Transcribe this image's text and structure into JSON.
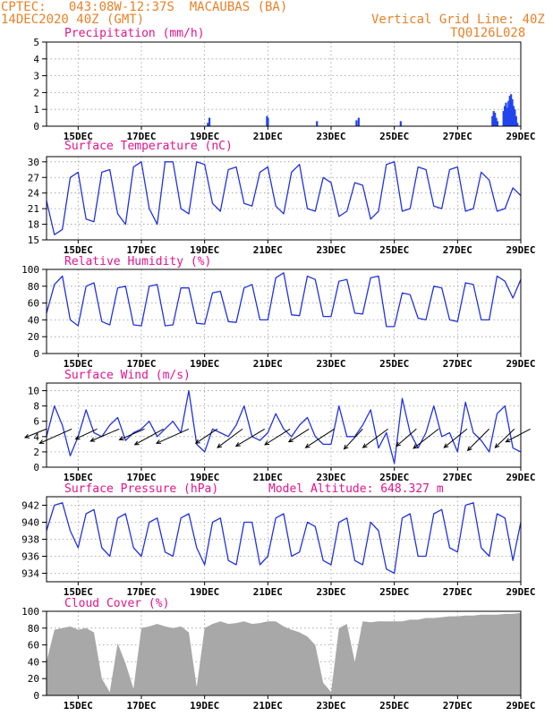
{
  "header": {
    "line1": "CPTEC:   043:08W-12:37S  MACAUBAS (BA)",
    "line2": "14DEC2020 40Z (GMT)",
    "grid_note": "Vertical Grid Line: 40Z",
    "model_code": "TQ0126L028"
  },
  "colors": {
    "header": "#e8822a",
    "title": "#e0158c",
    "line": "#2233dd",
    "precip": "#2244ee",
    "cloud": "#a8a8a8",
    "wind": "#000000"
  },
  "chart_data": [
    {
      "id": "precip",
      "type": "bar",
      "title": "Precipitation (mm/h)",
      "ylim": [
        0,
        5
      ],
      "yticks": [
        0,
        1,
        2,
        3,
        4,
        5
      ],
      "xlim": [
        14.0,
        29.0
      ],
      "xticks": [
        15,
        17,
        19,
        21,
        23,
        25,
        27,
        29
      ],
      "xticklabels": [
        "15DEC",
        "17DEC",
        "19DEC",
        "21DEC",
        "23DEC",
        "25DEC",
        "27DEC",
        "29DEC"
      ],
      "bars": [
        [
          19.1,
          0.2
        ],
        [
          19.15,
          0.5
        ],
        [
          20.97,
          0.6
        ],
        [
          21.0,
          0.5
        ],
        [
          22.55,
          0.3
        ],
        [
          23.8,
          0.35
        ],
        [
          23.87,
          0.5
        ],
        [
          25.2,
          0.3
        ],
        [
          28.1,
          0.6
        ],
        [
          28.14,
          0.9
        ],
        [
          28.18,
          0.8
        ],
        [
          28.22,
          0.5
        ],
        [
          28.26,
          0.3
        ],
        [
          28.45,
          0.9
        ],
        [
          28.49,
          1.2
        ],
        [
          28.53,
          1.4
        ],
        [
          28.57,
          1.1
        ],
        [
          28.61,
          1.5
        ],
        [
          28.65,
          1.8
        ],
        [
          28.69,
          1.9
        ],
        [
          28.73,
          1.6
        ],
        [
          28.77,
          1.2
        ],
        [
          28.81,
          1.0
        ],
        [
          28.85,
          0.6
        ],
        [
          28.89,
          0.2
        ]
      ]
    },
    {
      "id": "temp",
      "type": "line",
      "title": "Surface Temperature (nC)",
      "ylim": [
        15,
        31
      ],
      "yticks": [
        15,
        18,
        21,
        24,
        27,
        30
      ],
      "xlim": [
        14.0,
        29.0
      ],
      "xticks": [
        15,
        17,
        19,
        21,
        23,
        25,
        27,
        29
      ],
      "xticklabels": [
        "15DEC",
        "17DEC",
        "19DEC",
        "21DEC",
        "23DEC",
        "25DEC",
        "27DEC",
        "29DEC"
      ],
      "x": [
        14.0,
        14.25,
        14.5,
        14.75,
        15.0,
        15.25,
        15.5,
        15.75,
        16.0,
        16.25,
        16.5,
        16.75,
        17.0,
        17.25,
        17.5,
        17.75,
        18.0,
        18.25,
        18.5,
        18.75,
        19.0,
        19.25,
        19.5,
        19.75,
        20.0,
        20.25,
        20.5,
        20.75,
        21.0,
        21.25,
        21.5,
        21.75,
        22.0,
        22.25,
        22.5,
        22.75,
        23.0,
        23.25,
        23.5,
        23.75,
        24.0,
        24.25,
        24.5,
        24.75,
        25.0,
        25.25,
        25.5,
        25.75,
        26.0,
        26.25,
        26.5,
        26.75,
        27.0,
        27.25,
        27.5,
        27.75,
        28.0,
        28.25,
        28.5,
        28.75,
        29.0
      ],
      "values": [
        22.5,
        16.0,
        17.0,
        27.0,
        28.0,
        19.0,
        18.5,
        28.0,
        28.5,
        20.0,
        18.0,
        29.0,
        30.0,
        21.0,
        18.0,
        30.0,
        30.0,
        21.0,
        20.0,
        30.0,
        29.5,
        22.0,
        20.5,
        28.5,
        29.0,
        22.0,
        21.5,
        28.0,
        29.0,
        21.5,
        20.0,
        28.0,
        29.5,
        21.0,
        20.5,
        27.0,
        26.0,
        19.5,
        20.5,
        26.0,
        25.5,
        19.0,
        20.5,
        29.5,
        30.0,
        20.5,
        21.0,
        29.0,
        28.5,
        21.5,
        21.0,
        28.5,
        29.0,
        20.5,
        21.0,
        28.0,
        26.5,
        20.5,
        21.0,
        25.0,
        23.5
      ]
    },
    {
      "id": "rh",
      "type": "line",
      "title": "Relative Humidity (%)",
      "ylim": [
        0,
        100
      ],
      "yticks": [
        0,
        20,
        40,
        60,
        80,
        100
      ],
      "xlim": [
        14.0,
        29.0
      ],
      "xticks": [
        15,
        17,
        19,
        21,
        23,
        25,
        27,
        29
      ],
      "xticklabels": [
        "15DEC",
        "17DEC",
        "19DEC",
        "21DEC",
        "23DEC",
        "25DEC",
        "27DEC",
        "29DEC"
      ],
      "x": [
        14.0,
        14.25,
        14.5,
        14.75,
        15.0,
        15.25,
        15.5,
        15.75,
        16.0,
        16.25,
        16.5,
        16.75,
        17.0,
        17.25,
        17.5,
        17.75,
        18.0,
        18.25,
        18.5,
        18.75,
        19.0,
        19.25,
        19.5,
        19.75,
        20.0,
        20.25,
        20.5,
        20.75,
        21.0,
        21.25,
        21.5,
        21.75,
        22.0,
        22.25,
        22.5,
        22.75,
        23.0,
        23.25,
        23.5,
        23.75,
        24.0,
        24.25,
        24.5,
        24.75,
        25.0,
        25.25,
        25.5,
        25.75,
        26.0,
        26.25,
        26.5,
        26.75,
        27.0,
        27.25,
        27.5,
        27.75,
        28.0,
        28.25,
        28.5,
        28.75,
        29.0
      ],
      "values": [
        48.0,
        82.0,
        92.0,
        40.0,
        33.0,
        80.0,
        84.0,
        38.0,
        34.0,
        78.0,
        80.0,
        34.0,
        33.0,
        80.0,
        82.0,
        33.0,
        34.0,
        78.0,
        78.0,
        36.0,
        35.0,
        72.0,
        74.0,
        38.0,
        37.0,
        78.0,
        82.0,
        40.0,
        40.0,
        90.0,
        96.0,
        46.0,
        45.0,
        92.0,
        88.0,
        44.0,
        44.0,
        86.0,
        88.0,
        48.0,
        47.0,
        90.0,
        92.0,
        32.0,
        32.0,
        72.0,
        70.0,
        42.0,
        40.0,
        80.0,
        78.0,
        40.0,
        38.0,
        84.0,
        82.0,
        40.0,
        40.0,
        92.0,
        86.0,
        66.0,
        88.0
      ]
    },
    {
      "id": "wind",
      "type": "line",
      "title": "Surface Wind (m/s)",
      "ylim": [
        0,
        11
      ],
      "yticks": [
        0,
        2,
        4,
        6,
        8,
        10
      ],
      "xlim": [
        14.0,
        29.0
      ],
      "xticks": [
        15,
        17,
        19,
        21,
        23,
        25,
        27,
        29
      ],
      "xticklabels": [
        "15DEC",
        "17DEC",
        "19DEC",
        "21DEC",
        "23DEC",
        "25DEC",
        "27DEC",
        "29DEC"
      ],
      "x": [
        14.0,
        14.25,
        14.5,
        14.75,
        15.0,
        15.25,
        15.5,
        15.75,
        16.0,
        16.25,
        16.5,
        16.75,
        17.0,
        17.25,
        17.5,
        17.75,
        18.0,
        18.25,
        18.5,
        18.75,
        19.0,
        19.25,
        19.5,
        19.75,
        20.0,
        20.25,
        20.5,
        20.75,
        21.0,
        21.25,
        21.5,
        21.75,
        22.0,
        22.25,
        22.5,
        22.75,
        23.0,
        23.25,
        23.5,
        23.75,
        24.0,
        24.25,
        24.5,
        24.75,
        25.0,
        25.25,
        25.5,
        25.75,
        26.0,
        26.25,
        26.5,
        26.75,
        27.0,
        27.25,
        27.5,
        27.75,
        28.0,
        28.25,
        28.5,
        28.75,
        29.0
      ],
      "values": [
        4.0,
        8.0,
        5.5,
        1.5,
        4.0,
        7.5,
        4.5,
        4.0,
        5.5,
        6.5,
        3.5,
        4.5,
        5.0,
        6.0,
        4.0,
        5.0,
        6.0,
        4.5,
        10.0,
        3.0,
        2.0,
        5.0,
        4.5,
        4.0,
        5.5,
        8.0,
        4.0,
        3.5,
        4.5,
        7.0,
        5.0,
        4.0,
        5.5,
        6.5,
        4.0,
        3.0,
        3.0,
        8.0,
        4.0,
        4.0,
        5.5,
        7.5,
        2.5,
        4.5,
        0.5,
        9.0,
        4.5,
        2.5,
        4.5,
        8.0,
        4.0,
        4.5,
        2.0,
        8.5,
        4.5,
        3.5,
        2.0,
        7.0,
        8.0,
        2.5,
        2.0
      ],
      "arrows": [
        {
          "x": 14.0,
          "u": -3.0,
          "v": -1.2
        },
        {
          "x": 14.8,
          "u": -4.5,
          "v": -2.0
        },
        {
          "x": 15.6,
          "u": -3.0,
          "v": -1.4
        },
        {
          "x": 16.3,
          "u": -4.0,
          "v": -1.7
        },
        {
          "x": 17.1,
          "u": -3.5,
          "v": -1.5
        },
        {
          "x": 17.7,
          "u": -4.0,
          "v": -2.2
        },
        {
          "x": 18.5,
          "u": -4.5,
          "v": -2.0
        },
        {
          "x": 19.4,
          "u": -3.0,
          "v": -2.0
        },
        {
          "x": 20.2,
          "u": -3.5,
          "v": -2.6
        },
        {
          "x": 20.9,
          "u": -4.0,
          "v": -2.4
        },
        {
          "x": 21.7,
          "u": -3.5,
          "v": -2.2
        },
        {
          "x": 22.3,
          "u": -2.8,
          "v": -1.8
        },
        {
          "x": 23.1,
          "u": -4.0,
          "v": -2.6
        },
        {
          "x": 24.0,
          "u": -2.6,
          "v": -2.8
        },
        {
          "x": 24.8,
          "u": -3.5,
          "v": -2.6
        },
        {
          "x": 25.7,
          "u": -2.8,
          "v": -2.4
        },
        {
          "x": 26.4,
          "u": -3.5,
          "v": -2.7
        },
        {
          "x": 27.3,
          "u": -3.2,
          "v": -2.6
        },
        {
          "x": 28.0,
          "u": -3.0,
          "v": -3.0
        },
        {
          "x": 28.8,
          "u": -2.7,
          "v": -2.6
        },
        {
          "x": 29.3,
          "u": -3.4,
          "v": -1.8
        }
      ]
    },
    {
      "id": "pressure",
      "type": "line",
      "title": "Surface Pressure (hPa)",
      "annotation": "Model Altitude: 648.327 m",
      "ylim": [
        933,
        943
      ],
      "yticks": [
        934,
        936,
        938,
        940,
        942
      ],
      "xlim": [
        14.0,
        29.0
      ],
      "xticks": [
        15,
        17,
        19,
        21,
        23,
        25,
        27,
        29
      ],
      "xticklabels": [
        "15DEC",
        "17DEC",
        "19DEC",
        "21DEC",
        "23DEC",
        "25DEC",
        "27DEC",
        "29DEC"
      ],
      "x": [
        14.0,
        14.25,
        14.5,
        14.75,
        15.0,
        15.25,
        15.5,
        15.75,
        16.0,
        16.25,
        16.5,
        16.75,
        17.0,
        17.25,
        17.5,
        17.75,
        18.0,
        18.25,
        18.5,
        18.75,
        19.0,
        19.25,
        19.5,
        19.75,
        20.0,
        20.25,
        20.5,
        20.75,
        21.0,
        21.25,
        21.5,
        21.75,
        22.0,
        22.25,
        22.5,
        22.75,
        23.0,
        23.25,
        23.5,
        23.75,
        24.0,
        24.25,
        24.5,
        24.75,
        25.0,
        25.25,
        25.5,
        25.75,
        26.0,
        26.25,
        26.5,
        26.75,
        27.0,
        27.25,
        27.5,
        27.75,
        28.0,
        28.25,
        28.5,
        28.75,
        29.0
      ],
      "values": [
        939.0,
        942.0,
        942.3,
        939.0,
        937.0,
        941.0,
        941.5,
        937.0,
        936.0,
        940.5,
        941.0,
        937.0,
        936.0,
        940.0,
        940.5,
        936.5,
        936.0,
        940.5,
        941.0,
        937.0,
        935.0,
        940.0,
        940.5,
        935.5,
        935.0,
        940.0,
        940.0,
        935.0,
        936.0,
        940.5,
        941.0,
        936.0,
        936.5,
        940.0,
        939.5,
        935.5,
        935.0,
        940.0,
        940.5,
        935.5,
        935.0,
        940.0,
        939.0,
        934.5,
        934.0,
        940.5,
        941.0,
        936.0,
        936.0,
        941.0,
        941.5,
        937.0,
        936.5,
        942.0,
        942.3,
        937.0,
        936.0,
        941.0,
        940.5,
        935.5,
        940.0
      ]
    },
    {
      "id": "cloud",
      "type": "area",
      "title": "Cloud Cover (%)",
      "ylim": [
        0,
        100
      ],
      "yticks": [
        0,
        20,
        40,
        60,
        80,
        100
      ],
      "xlim": [
        14.0,
        29.0
      ],
      "xticks": [
        15,
        17,
        19,
        21,
        23,
        25,
        27,
        29
      ],
      "xticklabels": [
        "15DEC",
        "17DEC",
        "19DEC",
        "21DEC",
        "23DEC",
        "25DEC",
        "27DEC",
        "29DEC"
      ],
      "x": [
        14.0,
        14.25,
        14.5,
        14.75,
        15.0,
        15.25,
        15.5,
        15.75,
        16.0,
        16.25,
        16.5,
        16.75,
        17.0,
        17.25,
        17.5,
        17.75,
        18.0,
        18.25,
        18.5,
        18.75,
        19.0,
        19.25,
        19.5,
        19.75,
        20.0,
        20.25,
        20.5,
        20.75,
        21.0,
        21.25,
        21.5,
        21.75,
        22.0,
        22.25,
        22.5,
        22.75,
        23.0,
        23.25,
        23.5,
        23.75,
        24.0,
        24.25,
        24.5,
        24.75,
        25.0,
        25.25,
        25.5,
        25.75,
        26.0,
        26.25,
        26.5,
        26.75,
        27.0,
        27.25,
        27.5,
        27.75,
        28.0,
        28.25,
        28.5,
        28.75,
        29.0
      ],
      "values": [
        40.0,
        78.0,
        80.0,
        82.0,
        78.0,
        80.0,
        75.0,
        20.0,
        4.0,
        62.0,
        38.0,
        8.0,
        80.0,
        82.0,
        85.0,
        82.0,
        80.0,
        82.0,
        75.0,
        10.0,
        80.0,
        85.0,
        88.0,
        85.0,
        86.0,
        88.0,
        85.0,
        86.0,
        88.0,
        88.0,
        82.0,
        78.0,
        75.0,
        70.0,
        60.0,
        15.0,
        4.0,
        80.0,
        85.0,
        40.0,
        88.0,
        87.0,
        88.0,
        88.0,
        88.0,
        88.0,
        90.0,
        90.0,
        92.0,
        92.0,
        93.0,
        94.0,
        94.0,
        95.0,
        95.0,
        96.0,
        96.0,
        96.0,
        97.0,
        97.0,
        98.0
      ]
    }
  ]
}
